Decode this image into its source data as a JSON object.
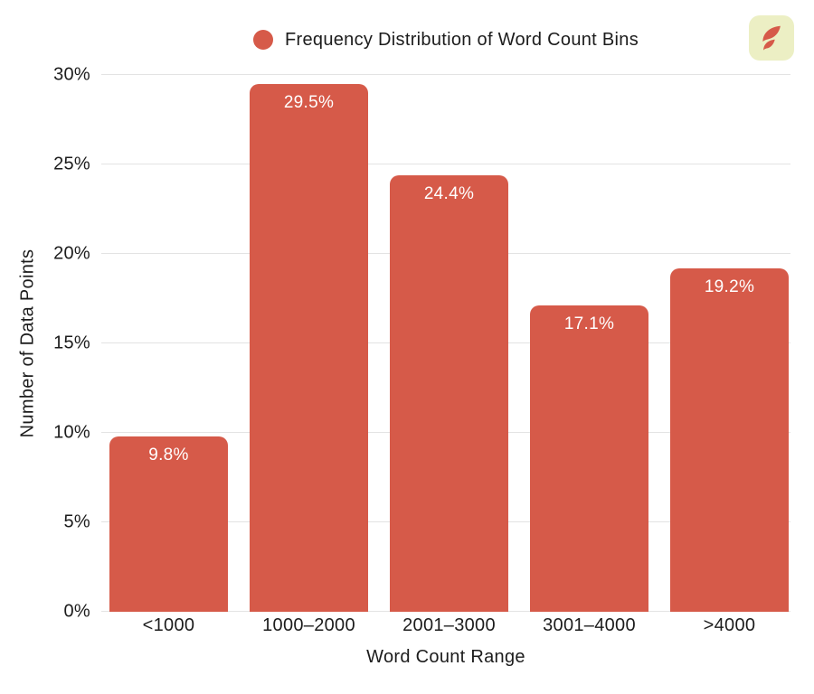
{
  "colors": {
    "bar": "#D65A49",
    "gridline": "#E3E3E3",
    "logo_background": "#ECEFC4",
    "logo_flame": "#D65A49",
    "text": "#1C1C1C",
    "value_label_text": "#FFFFFF"
  },
  "legend": {
    "marker": "circle"
  },
  "chart_data": {
    "type": "bar",
    "title": "Frequency Distribution of Word Count Bins",
    "xlabel": "Word Count Range",
    "ylabel": "Number of Data Points",
    "categories": [
      "<1000",
      "1000–2000",
      "2001–3000",
      "3001–4000",
      ">4000"
    ],
    "values": [
      9.8,
      29.5,
      24.4,
      17.1,
      19.2
    ],
    "value_labels": [
      "9.8%",
      "29.5%",
      "24.4%",
      "17.1%",
      "19.2%"
    ],
    "ylim": [
      0,
      30
    ],
    "ytick_values": [
      0,
      5,
      10,
      15,
      20,
      25,
      30
    ],
    "ytick_labels": [
      "0%",
      "5%",
      "10%",
      "15%",
      "20%",
      "25%",
      "30%"
    ],
    "grid": true,
    "legend_position": "top-center"
  }
}
